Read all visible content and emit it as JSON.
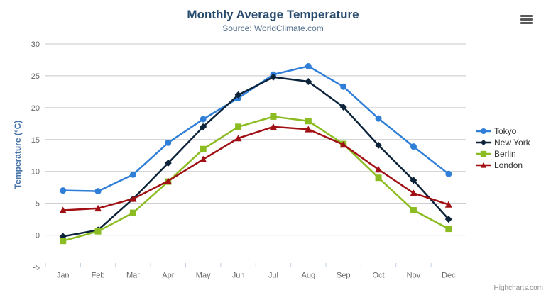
{
  "chart_data": {
    "type": "line",
    "title": "Monthly Average Temperature",
    "subtitle": "Source: WorldClimate.com",
    "xlabel": "",
    "ylabel": "Temperature (°C)",
    "ylim": [
      -5,
      30
    ],
    "ytick_step": 5,
    "grid": true,
    "legend_position": "right",
    "grid_color": "#c8c8c8",
    "axis_line_color": "#c0d0e0",
    "categories": [
      "Jan",
      "Feb",
      "Mar",
      "Apr",
      "May",
      "Jun",
      "Jul",
      "Aug",
      "Sep",
      "Oct",
      "Nov",
      "Dec"
    ],
    "series": [
      {
        "name": "Tokyo",
        "color": "#2f7ed8",
        "marker": "circle",
        "values": [
          7.0,
          6.9,
          9.5,
          14.5,
          18.2,
          21.5,
          25.2,
          26.5,
          23.3,
          18.3,
          13.9,
          9.6
        ]
      },
      {
        "name": "New York",
        "color": "#0d233a",
        "marker": "diamond",
        "values": [
          -0.2,
          0.8,
          5.7,
          11.3,
          17.0,
          22.0,
          24.8,
          24.1,
          20.1,
          14.1,
          8.6,
          2.5
        ]
      },
      {
        "name": "Berlin",
        "color": "#8bbc21",
        "marker": "square",
        "values": [
          -0.9,
          0.6,
          3.5,
          8.4,
          13.5,
          17.0,
          18.6,
          17.9,
          14.3,
          9.0,
          3.9,
          1.0
        ]
      },
      {
        "name": "London",
        "color": "#a01014",
        "marker": "triangle",
        "values": [
          3.9,
          4.2,
          5.7,
          8.5,
          11.9,
          15.2,
          17.0,
          16.6,
          14.2,
          10.3,
          6.6,
          4.8
        ]
      }
    ]
  },
  "credits": "Highcharts.com",
  "icons": {
    "context_menu": "hamburger-icon"
  }
}
